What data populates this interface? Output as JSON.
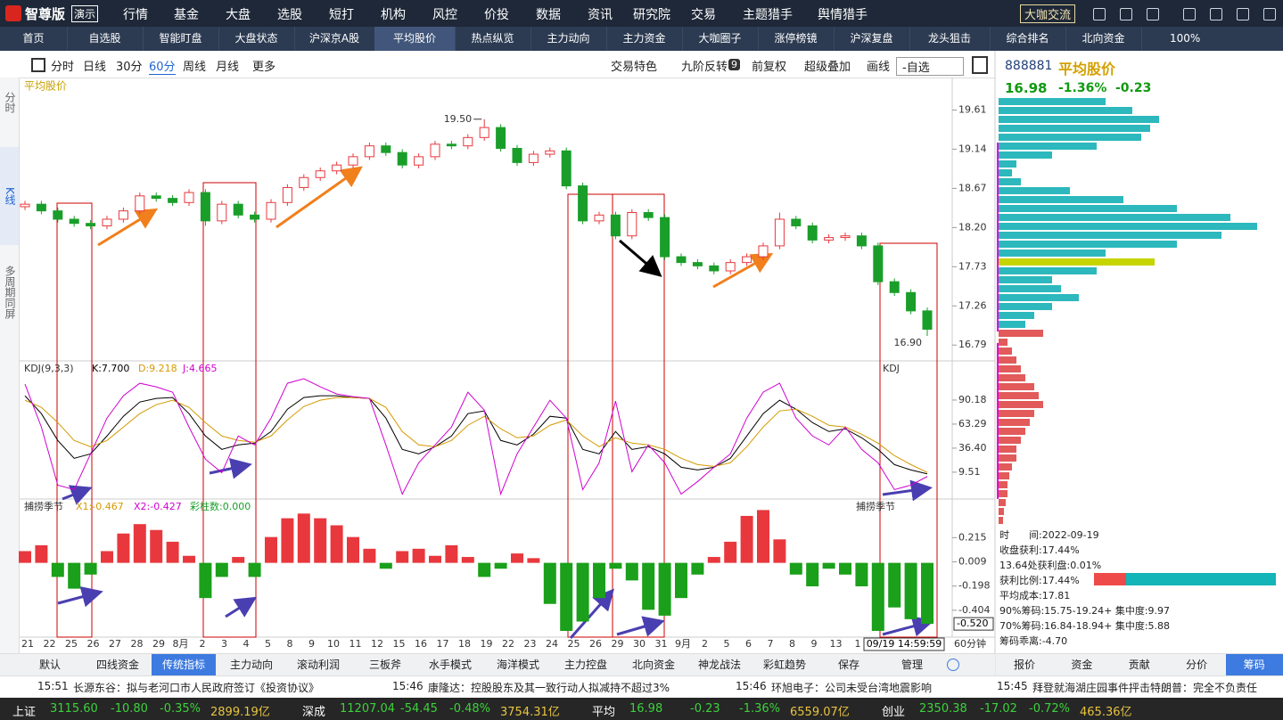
{
  "top_menu": {
    "logo": "智尊版",
    "demo": "演示",
    "items": [
      "行情",
      "基金",
      "大盘",
      "选股",
      "短打",
      "机构",
      "风控",
      "价投",
      "数据",
      "资讯",
      "研究院",
      "交易",
      "主题猎手",
      "舆情猎手"
    ],
    "exchange": "大咖交流"
  },
  "tabs": {
    "items": [
      "首页",
      "自选股",
      "智能盯盘",
      "大盘状态",
      "沪深京A股",
      "平均股价",
      "热点纵览",
      "主力动向",
      "主力资金",
      "大咖圈子",
      "涨停榜镜",
      "沪深复盘",
      "龙头狙击",
      "综合排名",
      "北向资金"
    ],
    "zoom": "100%"
  },
  "toolbar": {
    "periods": [
      "分时",
      "日线",
      "30分",
      "60分",
      "周线",
      "月线",
      "更多"
    ],
    "right": [
      "交易特色",
      "九阶反转",
      "前复权",
      "超级叠加",
      "画线",
      "-自选"
    ],
    "badge": "9"
  },
  "side_tabs": [
    "分时",
    "K线",
    "多周期同屏"
  ],
  "price_chart": {
    "title": "平均股价",
    "ylim": [
      16.6,
      20.0
    ],
    "yticks": [
      19.61,
      19.14,
      18.67,
      {
        "value": 18.2,
        "label": "18.20"
      },
      17.73,
      17.26,
      16.79
    ],
    "high_label": "19.50",
    "low_label": "16.90",
    "candles": [
      [
        18.45,
        18.52,
        18.41,
        18.48
      ],
      [
        18.48,
        18.52,
        18.36,
        18.4
      ],
      [
        18.4,
        18.44,
        18.26,
        18.3
      ],
      [
        18.3,
        18.34,
        18.21,
        18.25
      ],
      [
        18.25,
        18.29,
        18.18,
        18.22
      ],
      [
        18.22,
        18.34,
        18.18,
        18.3
      ],
      [
        18.3,
        18.44,
        18.26,
        18.4
      ],
      [
        18.4,
        18.62,
        18.36,
        18.58
      ],
      [
        18.58,
        18.62,
        18.51,
        18.55
      ],
      [
        18.55,
        18.59,
        18.46,
        18.5
      ],
      [
        18.5,
        18.66,
        18.46,
        18.62
      ],
      [
        18.62,
        18.66,
        18.22,
        18.28
      ],
      [
        18.28,
        18.52,
        18.24,
        18.48
      ],
      [
        18.48,
        18.52,
        18.31,
        18.35
      ],
      [
        18.35,
        18.39,
        18.26,
        18.3
      ],
      [
        18.3,
        18.54,
        18.26,
        18.5
      ],
      [
        18.5,
        18.72,
        18.46,
        18.68
      ],
      [
        18.68,
        18.84,
        18.64,
        18.8
      ],
      [
        18.8,
        18.92,
        18.76,
        18.88
      ],
      [
        18.88,
        18.99,
        18.84,
        18.95
      ],
      [
        18.95,
        19.09,
        18.91,
        19.05
      ],
      [
        19.05,
        19.22,
        19.01,
        19.18
      ],
      [
        19.18,
        19.22,
        19.06,
        19.1
      ],
      [
        19.1,
        19.14,
        18.91,
        18.95
      ],
      [
        18.95,
        19.09,
        18.91,
        19.05
      ],
      [
        19.05,
        19.24,
        19.01,
        19.2
      ],
      [
        19.2,
        19.24,
        19.14,
        19.18
      ],
      [
        19.18,
        19.32,
        19.14,
        19.28
      ],
      [
        19.28,
        19.5,
        19.24,
        19.4
      ],
      [
        19.4,
        19.44,
        19.11,
        19.15
      ],
      [
        19.15,
        19.19,
        18.94,
        18.98
      ],
      [
        18.98,
        19.12,
        18.94,
        19.08
      ],
      [
        19.08,
        19.16,
        19.04,
        19.12
      ],
      [
        19.12,
        19.16,
        18.66,
        18.7
      ],
      [
        18.7,
        18.74,
        18.24,
        18.28
      ],
      [
        18.28,
        18.39,
        18.24,
        18.35
      ],
      [
        18.35,
        18.39,
        18.06,
        18.1
      ],
      [
        18.1,
        18.42,
        18.06,
        18.38
      ],
      [
        18.38,
        18.42,
        18.28,
        18.32
      ],
      [
        18.32,
        18.36,
        17.81,
        17.85
      ],
      [
        17.85,
        17.89,
        17.74,
        17.78
      ],
      [
        17.78,
        17.82,
        17.7,
        17.74
      ],
      [
        17.74,
        17.78,
        17.64,
        17.68
      ],
      [
        17.68,
        17.82,
        17.64,
        17.78
      ],
      [
        17.78,
        17.89,
        17.74,
        17.85
      ],
      [
        17.85,
        18.02,
        17.81,
        17.98
      ],
      [
        17.98,
        18.38,
        17.94,
        18.3
      ],
      [
        18.3,
        18.34,
        18.18,
        18.22
      ],
      [
        18.22,
        18.26,
        18.01,
        18.05
      ],
      [
        18.05,
        18.12,
        18.01,
        18.08
      ],
      [
        18.08,
        18.14,
        18.04,
        18.1
      ],
      [
        18.1,
        18.14,
        17.94,
        17.98
      ],
      [
        17.98,
        18.02,
        17.51,
        17.55
      ],
      [
        17.55,
        17.59,
        17.38,
        17.42
      ],
      [
        17.42,
        17.46,
        17.16,
        17.2
      ],
      [
        17.2,
        17.24,
        16.9,
        16.98
      ]
    ]
  },
  "kdj": {
    "title": "KDJ(9,3,3)",
    "k_label": "K:7.700",
    "d_label": "D:9.218",
    "j_label": "J:4.665",
    "corner": "KDJ",
    "ylim": [
      -20.5,
      134
    ],
    "yticks": [
      90.18,
      63.29,
      {
        "value": 36.4,
        "label": "36.40"
      },
      9.51
    ],
    "k_color": "#000000",
    "d_color": "#d49a00",
    "j_color": "#d000d0",
    "k": [
      95,
      75,
      45,
      25,
      30,
      50,
      72,
      88,
      92,
      93,
      75,
      50,
      35,
      40,
      42,
      55,
      80,
      93,
      95,
      95,
      93,
      92,
      70,
      35,
      30,
      38,
      50,
      75,
      78,
      45,
      40,
      52,
      72,
      70,
      35,
      30,
      55,
      35,
      38,
      30,
      15,
      12,
      15,
      25,
      50,
      75,
      90,
      80,
      65,
      55,
      58,
      48,
      35,
      18,
      12,
      7.7
    ],
    "d": [
      90,
      82,
      65,
      45,
      38,
      45,
      60,
      75,
      85,
      90,
      82,
      65,
      50,
      45,
      43,
      50,
      68,
      83,
      90,
      93,
      93,
      92,
      82,
      55,
      40,
      38,
      45,
      62,
      72,
      58,
      48,
      50,
      62,
      68,
      50,
      38,
      48,
      42,
      40,
      35,
      25,
      18,
      16,
      20,
      38,
      60,
      78,
      80,
      72,
      62,
      60,
      52,
      42,
      28,
      18,
      9.218
    ],
    "j": [
      108,
      60,
      -5,
      -10,
      30,
      70,
      95,
      109,
      105,
      99,
      60,
      24,
      9,
      50,
      40,
      70,
      109,
      114,
      105,
      97,
      94,
      92,
      40,
      -15,
      20,
      40,
      60,
      99,
      79,
      -15,
      30,
      60,
      90,
      70,
      -10,
      20,
      89,
      10,
      40,
      20,
      -15,
      -1,
      15,
      30,
      70,
      99,
      109,
      70,
      50,
      40,
      60,
      35,
      20,
      -10,
      -5,
      4.665
    ]
  },
  "catch": {
    "title": "捕捞季节",
    "x1_label": "X1:-0.467",
    "x2_label": "X2:-0.427",
    "count_label": "彩柱数:0.000",
    "corner": "捕捞季节",
    "ylim": [
      -0.633,
      0.544
    ],
    "yticks": [
      0.215,
      0.009,
      -0.198,
      -0.404
    ],
    "current": {
      "value": -0.52,
      "label": "-0.520"
    },
    "up_color": "#e8383d",
    "down_color": "#1aa01a",
    "values": [
      0.1,
      0.15,
      -0.12,
      -0.22,
      -0.1,
      0.1,
      0.25,
      0.33,
      0.28,
      0.18,
      0.06,
      -0.3,
      -0.12,
      0.05,
      -0.12,
      0.22,
      0.38,
      0.42,
      0.38,
      0.32,
      0.22,
      0.12,
      -0.05,
      0.1,
      0.12,
      0.06,
      0.15,
      0.05,
      -0.12,
      -0.05,
      0.08,
      0.04,
      -0.35,
      -0.58,
      -0.5,
      -0.3,
      -0.05,
      -0.15,
      -0.4,
      -0.45,
      -0.3,
      -0.1,
      0.05,
      0.18,
      0.4,
      0.45,
      0.2,
      -0.1,
      -0.2,
      -0.05,
      -0.1,
      -0.2,
      -0.58,
      -0.38,
      -0.48,
      -0.52
    ]
  },
  "date_axis": {
    "labels": [
      "21",
      "22",
      "25",
      "26",
      "27",
      "28",
      "29",
      "8月",
      "2",
      "3",
      "4",
      "5",
      "8",
      "9",
      "10",
      "11",
      "12",
      "15",
      "16",
      "17",
      "18",
      "19",
      "22",
      "23",
      "24",
      "25",
      "26",
      "29",
      "30",
      "31",
      "9月",
      "2",
      "5",
      "6",
      "7",
      "8",
      "9",
      "13",
      "1"
    ],
    "cursor": "09/19 14:59:59",
    "period": "60分钟"
  },
  "bottom_tabs": {
    "items": [
      "默认",
      "四线资金",
      "传统指标",
      "主力动向",
      "滚动利润",
      "三板斧",
      "水手模式",
      "海洋模式",
      "主力控盘",
      "北向资金",
      "神龙战法",
      "彩虹趋势",
      "保存",
      "管理"
    ],
    "selected": "传统指标"
  },
  "news": [
    {
      "time": "15:51",
      "text": "长源东谷：拟与老河口市人民政府签订《投资协议》"
    },
    {
      "time": "15:46",
      "text": "康隆达：控股股东及其一致行动人拟减持不超过3%"
    },
    {
      "time": "15:46",
      "text": "环旭电子：公司未受台湾地震影响"
    },
    {
      "time": "15:45",
      "text": "拜登就海湖庄园事件抨击特朗普：完全不负责任"
    }
  ],
  "indices": [
    {
      "name": "上证",
      "value": "3115.60",
      "change": "-10.80",
      "pct": "-0.35%",
      "amount": "2899.19亿"
    },
    {
      "name": "深成",
      "value": "11207.04",
      "change": "-54.45",
      "pct": "-0.48%",
      "amount": "3754.31亿"
    },
    {
      "name": "平均",
      "value": "16.98",
      "change": "-0.23",
      "pct": "-1.36%",
      "amount": "6559.07亿"
    },
    {
      "name": "创业",
      "value": "2350.38",
      "change": "-17.02",
      "pct": "-0.72%",
      "amount": "465.36亿"
    }
  ],
  "quote": {
    "code": "888881",
    "name": "平均股价",
    "price": "16.98",
    "pct": "-1.36%",
    "change": "-0.23"
  },
  "chips": {
    "bars": [
      40,
      120,
      150,
      180,
      170,
      160,
      110,
      60,
      20,
      15,
      25,
      80,
      140,
      200,
      260,
      290,
      250,
      200,
      120,
      175,
      110,
      60,
      70,
      90,
      60,
      40,
      30,
      50,
      10,
      15,
      20,
      25,
      30,
      40,
      45,
      50,
      40,
      35,
      30,
      25,
      20,
      20,
      15,
      12,
      10,
      10,
      8,
      6,
      5
    ],
    "bar_colors": [
      "#2cb8bc",
      "#2cb8bc",
      "#2cb8bc",
      "#2cb8bc",
      "#2cb8bc",
      "#2cb8bc",
      "#2cb8bc",
      "#2cb8bc",
      "#2cb8bc",
      "#2cb8bc",
      "#2cb8bc",
      "#2cb8bc",
      "#2cb8bc",
      "#2cb8bc",
      "#2cb8bc",
      "#2cb8bc",
      "#2cb8bc",
      "#2cb8bc",
      "#2cb8bc",
      "#c6d400",
      "#2cb8bc",
      "#2cb8bc",
      "#2cb8bc",
      "#2cb8bc",
      "#2cb8bc",
      "#2cb8bc",
      "#2cb8bc",
      "#e25a5a",
      "#e25a5a",
      "#e25a5a",
      "#e25a5a",
      "#e25a5a",
      "#e25a5a",
      "#e25a5a",
      "#e25a5a",
      "#e25a5a",
      "#e25a5a",
      "#e25a5a",
      "#e25a5a",
      "#e25a5a",
      "#e25a5a",
      "#e25a5a",
      "#e25a5a",
      "#e25a5a",
      "#e25a5a",
      "#e25a5a",
      "#e25a5a",
      "#e25a5a",
      "#e25a5a"
    ],
    "stats": [
      "时　　间:2022-09-19",
      "收盘获利:17.44%",
      "13.64处获利盘:0.01%",
      "获利比例:17.44%",
      "平均成本:17.81",
      "90%筹码:15.75-19.24+ 集中度:9.97",
      "70%筹码:16.84-18.94+ 集中度:5.88",
      "筹码乖离:-4.70"
    ],
    "profit_ratio": 17.44
  },
  "right_tabs": {
    "items": [
      "报价",
      "资金",
      "贡献",
      "分价",
      "筹码"
    ],
    "selected": "筹码"
  }
}
